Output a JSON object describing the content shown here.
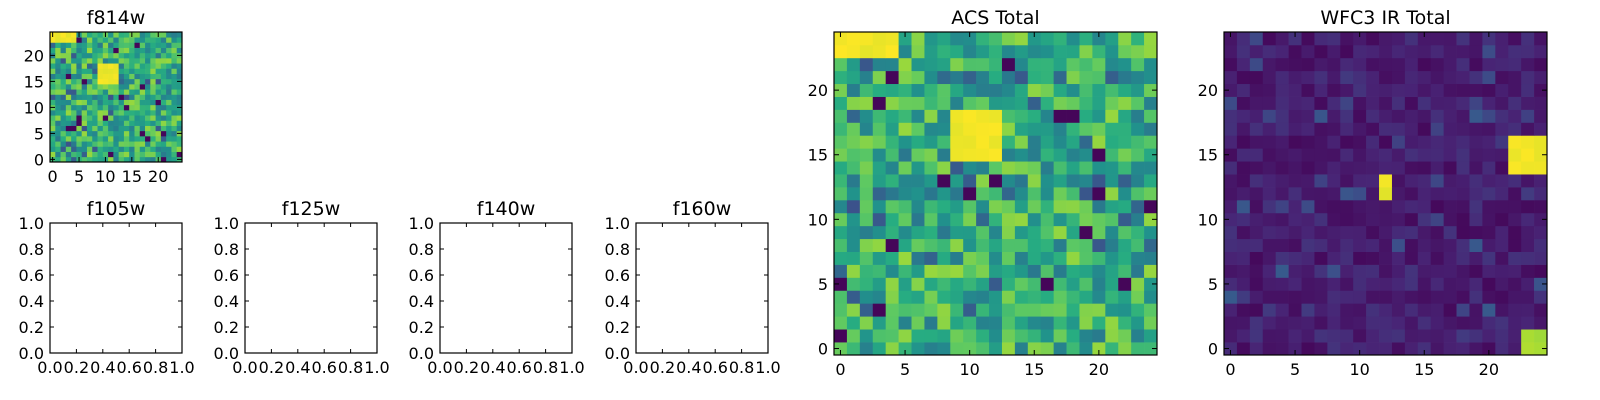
{
  "chart_data": [
    {
      "type": "heatmap",
      "title": "f814w",
      "xlim": [
        -0.5,
        24.5
      ],
      "ylim": [
        -0.5,
        24.5
      ],
      "xticks": [
        0,
        5,
        10,
        15,
        20
      ],
      "yticks": [
        0,
        5,
        10,
        15,
        20
      ],
      "tick_labels_x": [
        "0",
        "5",
        "10",
        "15",
        "20"
      ],
      "tick_labels_y": [
        "0",
        "5",
        "10",
        "15",
        "20"
      ],
      "colormap": "viridis",
      "grid": false,
      "grid_size": [
        25,
        25
      ],
      "features": [
        {
          "kind": "bright-blob",
          "x": [
            9,
            12
          ],
          "y": [
            15,
            18
          ],
          "level": 1.0
        },
        {
          "kind": "bright-blob",
          "x": [
            0,
            4
          ],
          "y": [
            23,
            24
          ],
          "level": 1.0
        }
      ]
    },
    {
      "type": "heatmap",
      "title": "f105w",
      "empty": true,
      "xlim": [
        0,
        1
      ],
      "ylim": [
        0,
        1
      ],
      "tick_labels_x": [
        "0.0",
        "0.2",
        "0.4",
        "0.6",
        "0.8",
        "1.0"
      ],
      "tick_labels_y": [
        "0.0",
        "0.2",
        "0.4",
        "0.6",
        "0.8",
        "1.0"
      ]
    },
    {
      "type": "heatmap",
      "title": "f125w",
      "empty": true,
      "xlim": [
        0,
        1
      ],
      "ylim": [
        0,
        1
      ],
      "tick_labels_x": [
        "0.0",
        "0.2",
        "0.4",
        "0.6",
        "0.8",
        "1.0"
      ],
      "tick_labels_y": [
        "0.0",
        "0.2",
        "0.4",
        "0.6",
        "0.8",
        "1.0"
      ]
    },
    {
      "type": "heatmap",
      "title": "f140w",
      "empty": true,
      "xlim": [
        0,
        1
      ],
      "ylim": [
        0,
        1
      ],
      "tick_labels_x": [
        "0.0",
        "0.2",
        "0.4",
        "0.6",
        "0.8",
        "1.0"
      ],
      "tick_labels_y": [
        "0.0",
        "0.2",
        "0.4",
        "0.6",
        "0.8",
        "1.0"
      ]
    },
    {
      "type": "heatmap",
      "title": "f160w",
      "empty": true,
      "xlim": [
        0,
        1
      ],
      "ylim": [
        0,
        1
      ],
      "tick_labels_x": [
        "0.0",
        "0.2",
        "0.4",
        "0.6",
        "0.8",
        "1.0"
      ],
      "tick_labels_y": [
        "0.0",
        "0.2",
        "0.4",
        "0.6",
        "0.8",
        "1.0"
      ]
    },
    {
      "type": "heatmap",
      "title": "ACS Total",
      "xlim": [
        -0.5,
        24.5
      ],
      "ylim": [
        -0.5,
        24.5
      ],
      "xticks": [
        0,
        5,
        10,
        15,
        20
      ],
      "yticks": [
        0,
        5,
        10,
        15,
        20
      ],
      "tick_labels_x": [
        "0",
        "5",
        "10",
        "15",
        "20"
      ],
      "tick_labels_y": [
        "0",
        "5",
        "10",
        "15",
        "20"
      ],
      "colormap": "viridis",
      "grid": false,
      "grid_size": [
        25,
        25
      ],
      "features": [
        {
          "kind": "bright-blob",
          "x": [
            9,
            12
          ],
          "y": [
            15,
            18
          ],
          "level": 1.0
        },
        {
          "kind": "bright-blob",
          "x": [
            0,
            4
          ],
          "y": [
            23,
            24
          ],
          "level": 1.0
        }
      ]
    },
    {
      "type": "heatmap",
      "title": "WFC3 IR Total",
      "xlim": [
        -0.5,
        24.5
      ],
      "ylim": [
        -0.5,
        24.5
      ],
      "xticks": [
        0,
        5,
        10,
        15,
        20
      ],
      "yticks": [
        0,
        5,
        10,
        15,
        20
      ],
      "tick_labels_x": [
        "0",
        "5",
        "10",
        "15",
        "20"
      ],
      "tick_labels_y": [
        "0",
        "5",
        "10",
        "15",
        "20"
      ],
      "colormap": "viridis",
      "grid": false,
      "grid_size": [
        25,
        25
      ],
      "features": [
        {
          "kind": "bright-blob",
          "x": [
            22,
            24
          ],
          "y": [
            14,
            16
          ],
          "level": 1.0
        },
        {
          "kind": "bright-blob",
          "x": [
            12,
            12
          ],
          "y": [
            12,
            13
          ],
          "level": 1.0
        },
        {
          "kind": "bright-blob",
          "x": [
            23,
            24
          ],
          "y": [
            0,
            1
          ],
          "level": 0.9
        }
      ]
    }
  ]
}
